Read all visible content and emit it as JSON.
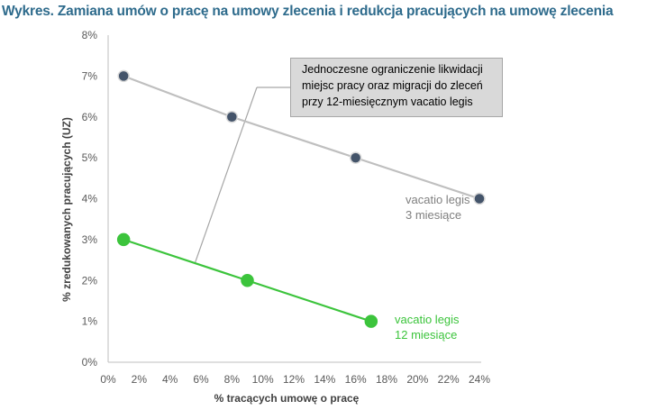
{
  "title": "Wykres. Zamiana umów o pracę na umowy zlecenia i redukcja pracujących na umowę zlecenia",
  "colors": {
    "title": "#2e6b8c",
    "series_3m_line": "#bfbfbf",
    "series_3m_marker": "#44546a",
    "series_12m": "#3cc43c",
    "label_3m": "#7f7f7f",
    "label_12m": "#3cc43c"
  },
  "annotation": {
    "lines": [
      "Jednoczesne ograniczenie likwidacji",
      "miejsc pracy oraz migracji do zleceń",
      "przy 12-miesięcznym vacatio legis"
    ]
  },
  "chart_data": {
    "type": "line",
    "title": "",
    "xlabel": "% tracących umowę o pracę",
    "ylabel": "% zredukowanych pracujących (UZ)",
    "xlim": [
      0,
      24
    ],
    "ylim": [
      0,
      8
    ],
    "x_ticks": [
      "0%",
      "2%",
      "4%",
      "6%",
      "8%",
      "10%",
      "12%",
      "14%",
      "16%",
      "18%",
      "20%",
      "22%",
      "24%"
    ],
    "y_ticks": [
      "0%",
      "1%",
      "2%",
      "3%",
      "4%",
      "5%",
      "6%",
      "7%",
      "8%"
    ],
    "grid": false,
    "series": [
      {
        "name": "vacatio legis 3 miesiące",
        "label_lines": [
          "vacatio legis",
          "3 miesiące"
        ],
        "x": [
          1,
          8,
          16,
          24
        ],
        "y": [
          7,
          6,
          5,
          4
        ]
      },
      {
        "name": "vacatio legis 12 miesiące",
        "label_lines": [
          "vacatio legis",
          "12 miesiące"
        ],
        "x": [
          1,
          9,
          17
        ],
        "y": [
          3,
          2,
          1
        ]
      }
    ]
  }
}
